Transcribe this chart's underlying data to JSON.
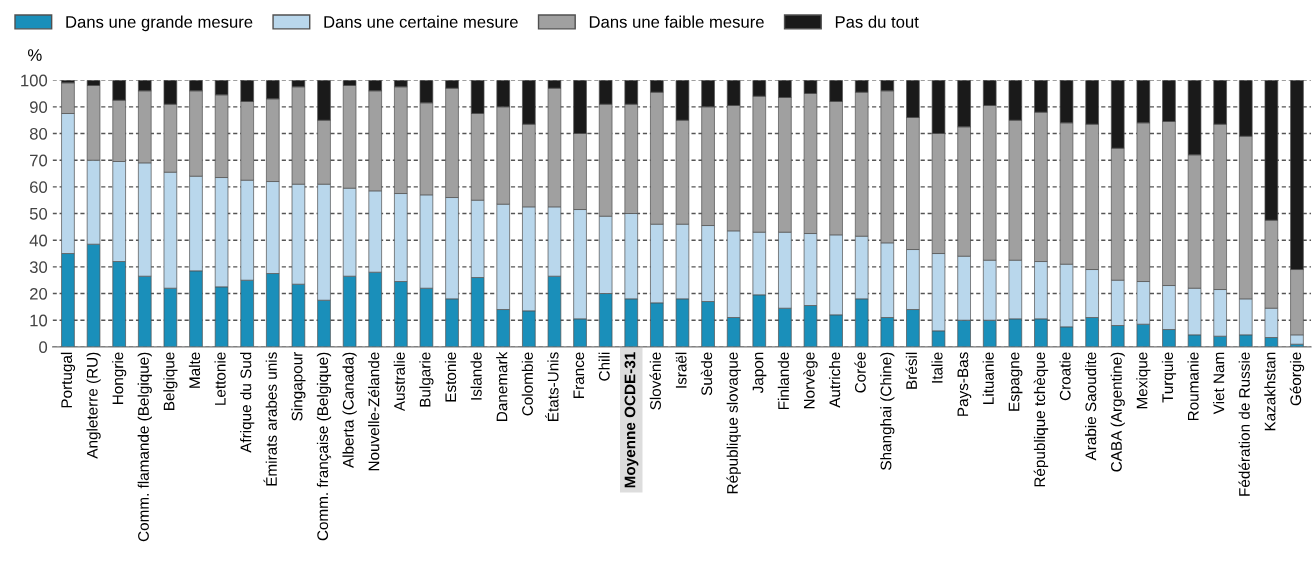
{
  "chart_data": {
    "type": "bar",
    "stacked": true,
    "ylabel": "%",
    "ylim": [
      0,
      100
    ],
    "yticks": [
      0,
      10,
      20,
      30,
      40,
      50,
      60,
      70,
      80,
      90,
      100
    ],
    "grid": "y",
    "legend": "top left",
    "categories": [
      "Portugal",
      "Angleterre (RU)",
      "Hongrie",
      "Comm. flamande (Belgique)",
      "Belgique",
      "Malte",
      "Lettonie",
      "Afrique du Sud",
      "Émirats arabes unis",
      "Singapour",
      "Comm. française (Belgique)",
      "Alberta (Canada)",
      "Nouvelle-Zélande",
      "Australie",
      "Bulgarie",
      "Estonie",
      "Islande",
      "Danemark",
      "Colombie",
      "États-Unis",
      "France",
      "Chili",
      "Moyenne OCDE-31",
      "Slovénie",
      "Israël",
      "Suède",
      "République slovaque",
      "Japon",
      "Finlande",
      "Norvège",
      "Autriche",
      "Corée",
      "Shanghai (Chine)",
      "Brésil",
      "Italie",
      "Pays-Bas",
      "Lituanie",
      "Espagne",
      "République tchèque",
      "Croatie",
      "Arabie Saoudite",
      "CABA (Argentine)",
      "Mexique",
      "Turquie",
      "Roumanie",
      "Viet Nam",
      "Fédération de Russie",
      "Kazakhstan",
      "Géorgie"
    ],
    "series": [
      {
        "name": "Dans une grande mesure",
        "color": "#1a8fba",
        "values": [
          35,
          38.5,
          32,
          26.5,
          22,
          28.5,
          22.5,
          25,
          27.5,
          23.5,
          17.5,
          26.5,
          28,
          24.5,
          22,
          18,
          26,
          14,
          13.5,
          26.5,
          10.5,
          20,
          18,
          16.5,
          18,
          17,
          11,
          19.5,
          14.5,
          15.5,
          12,
          18,
          11,
          14,
          6,
          10,
          10,
          10.5,
          10.5,
          7.5,
          11,
          8,
          8.5,
          6.5,
          4.5,
          4,
          4.5,
          3.5,
          1
        ]
      },
      {
        "name": "Dans une certaine mesure",
        "color": "#b9d7ec",
        "values": [
          52.5,
          31.5,
          37.5,
          42.5,
          43.5,
          35.5,
          41,
          37.5,
          34.5,
          37.5,
          43.5,
          33,
          30.5,
          33,
          35,
          38,
          29,
          39.5,
          39,
          26,
          41,
          29,
          32,
          29.5,
          28,
          28.5,
          32.5,
          23.5,
          28.5,
          27,
          30,
          23.5,
          28,
          22.5,
          29,
          24,
          22.5,
          22,
          21.5,
          23.5,
          18,
          17,
          16,
          16.5,
          17.5,
          17.5,
          13.5,
          11,
          3.5
        ]
      },
      {
        "name": "Dans une faible mesure",
        "color": "#a0a0a0",
        "values": [
          11.5,
          28,
          23,
          27,
          25.5,
          32,
          31,
          29.5,
          31,
          36.5,
          24,
          38.5,
          37.5,
          40,
          34.5,
          41,
          32.5,
          36.5,
          31,
          44.5,
          28.5,
          42,
          41,
          49.5,
          39,
          44.5,
          47,
          51,
          50.5,
          52.5,
          50,
          54,
          57,
          49.5,
          45,
          48.5,
          58,
          52.5,
          56,
          53,
          54.5,
          49.5,
          59.5,
          61.5,
          50,
          62,
          61,
          33,
          24.5
        ]
      },
      {
        "name": "Pas du tout",
        "color": "#1a1a1a",
        "values": [
          1,
          2,
          7.5,
          4,
          9,
          4,
          5.5,
          8,
          7,
          2.5,
          15,
          2,
          4,
          2.5,
          8.5,
          3,
          12.5,
          10,
          16.5,
          3,
          20,
          9,
          9,
          4.5,
          15,
          10,
          9.5,
          6,
          6.5,
          5,
          8,
          4.5,
          4,
          14,
          20,
          17.5,
          9.5,
          15,
          12,
          16,
          16.5,
          25.5,
          16,
          15.5,
          28,
          16.5,
          21,
          52.5,
          71
        ]
      }
    ]
  }
}
